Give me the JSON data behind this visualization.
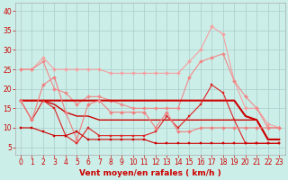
{
  "title": "",
  "xlabel": "Vent moyen/en rafales ( km/h )",
  "background_color": "#cceee8",
  "grid_color": "#aacccc",
  "x": [
    0,
    1,
    2,
    3,
    4,
    5,
    6,
    7,
    8,
    9,
    10,
    11,
    12,
    13,
    14,
    15,
    16,
    17,
    18,
    19,
    20,
    21,
    22,
    23
  ],
  "series": [
    {
      "color": "#f4a0a0",
      "y": [
        25,
        25,
        28,
        25,
        25,
        25,
        25,
        25,
        24,
        24,
        24,
        24,
        24,
        24,
        24,
        27,
        30,
        36,
        34,
        22,
        15,
        15,
        11,
        10
      ],
      "linewidth": 0.8,
      "marker": "D",
      "markersize": 2.0
    },
    {
      "color": "#f08888",
      "y": [
        25,
        25,
        27,
        20,
        19,
        16,
        18,
        18,
        17,
        16,
        15,
        15,
        15,
        15,
        15,
        23,
        27,
        28,
        29,
        22,
        18,
        15,
        10,
        10
      ],
      "linewidth": 0.8,
      "marker": "D",
      "markersize": 2.0
    },
    {
      "color": "#cc0000",
      "y": [
        17,
        17,
        17,
        17,
        17,
        17,
        17,
        17,
        17,
        17,
        17,
        17,
        17,
        17,
        17,
        17,
        17,
        17,
        17,
        17,
        13,
        12,
        7,
        7
      ],
      "linewidth": 1.5,
      "marker": null,
      "markersize": 0
    },
    {
      "color": "#cc0000",
      "y": [
        17,
        17,
        17,
        16,
        14,
        13,
        13,
        12,
        12,
        12,
        12,
        12,
        12,
        12,
        12,
        12,
        12,
        12,
        12,
        12,
        12,
        12,
        7,
        7
      ],
      "linewidth": 1.0,
      "marker": null,
      "markersize": 0
    },
    {
      "color": "#dd2222",
      "y": [
        17,
        12,
        17,
        15,
        8,
        6,
        10,
        8,
        8,
        8,
        8,
        8,
        9,
        13,
        10,
        13,
        16,
        21,
        19,
        12,
        6,
        6,
        6,
        6
      ],
      "linewidth": 0.8,
      "marker": "s",
      "markersize": 2.0
    },
    {
      "color": "#f08080",
      "y": [
        17,
        12,
        21,
        23,
        14,
        7,
        16,
        17,
        14,
        14,
        14,
        14,
        10,
        14,
        9,
        9,
        10,
        10,
        10,
        10,
        10,
        10,
        10,
        10
      ],
      "linewidth": 0.8,
      "marker": "D",
      "markersize": 2.0
    },
    {
      "color": "#cc0000",
      "y": [
        10,
        10,
        9,
        8,
        8,
        9,
        7,
        7,
        7,
        7,
        7,
        7,
        6,
        6,
        6,
        6,
        6,
        6,
        6,
        6,
        6,
        6,
        6,
        6
      ],
      "linewidth": 0.8,
      "marker": "s",
      "markersize": 2.0
    }
  ],
  "ylim": [
    3,
    42
  ],
  "yticks": [
    5,
    10,
    15,
    20,
    25,
    30,
    35,
    40
  ],
  "tick_fontsize": 5.5,
  "label_fontsize": 6.5
}
